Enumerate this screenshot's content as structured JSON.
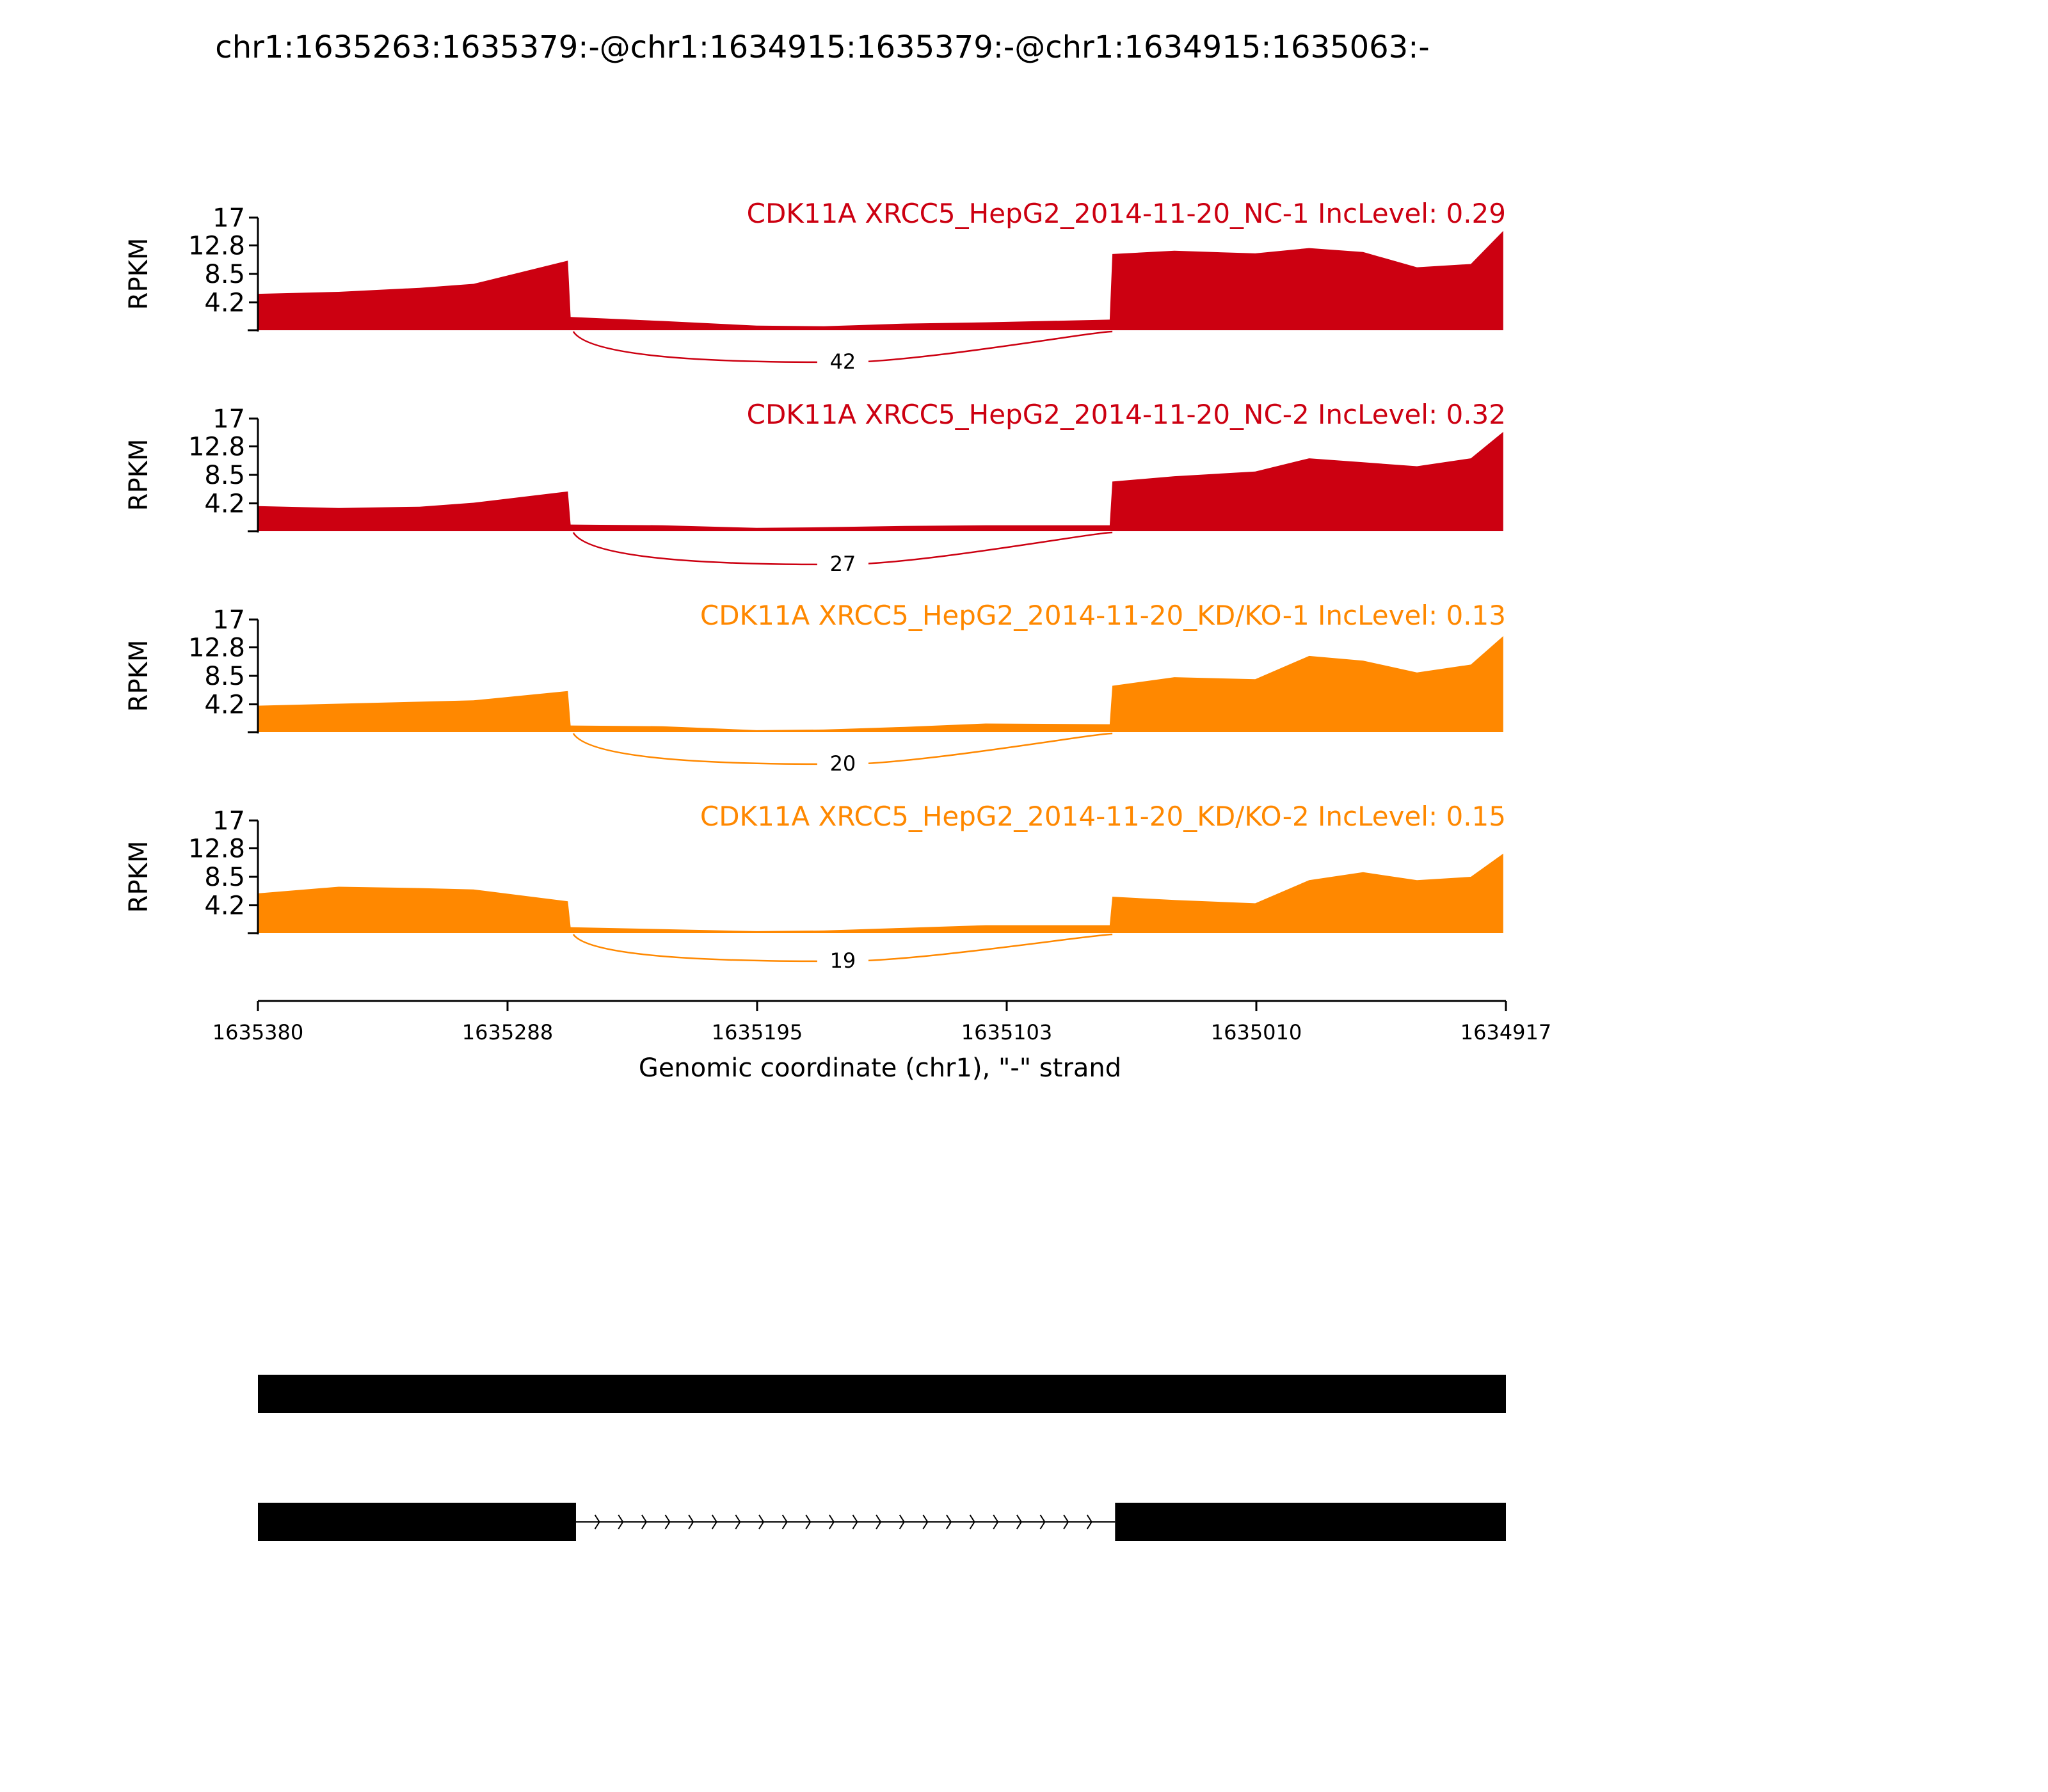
{
  "figure": {
    "title": "chr1:1635263:1635379:-@chr1:1634915:1635379:-@chr1:1634915:1635063:-",
    "xlabel": "Genomic coordinate (chr1), \"-\" strand",
    "x_ticks": [
      "1635380",
      "1635288",
      "1635195",
      "1635103",
      "1635010",
      "1634917"
    ]
  },
  "chart_data": {
    "type": "area",
    "title": "chr1:1635263:1635379:-@chr1:1634915:1635379:-@chr1:1634915:1635063:-",
    "xlabel": "Genomic coordinate (chr1), \"-\" strand",
    "ylabel": "RPKM",
    "xlim": [
      1635380,
      1634917
    ],
    "x_reversed": true,
    "ylim": [
      0,
      17
    ],
    "y_ticks": [
      "17",
      "12.8",
      "8.5",
      "4.2"
    ],
    "x": [
      1635380,
      1635350,
      1635320,
      1635300,
      1635265,
      1635264,
      1635230,
      1635195,
      1635170,
      1635140,
      1635110,
      1635064,
      1635063,
      1635040,
      1635010,
      1634990,
      1634970,
      1634950,
      1634930,
      1634918
    ],
    "series": [
      {
        "name": "CDK11A XRCC5_HepG2_2014-11-20_NC-1 IncLevel: 0.29",
        "color": "#cc0011",
        "junction_count": "42",
        "values": [
          5.5,
          5.8,
          6.4,
          7.0,
          10.5,
          2.0,
          1.4,
          0.7,
          0.6,
          1.0,
          1.2,
          1.6,
          11.5,
          12.0,
          11.6,
          12.4,
          11.8,
          9.5,
          10.0,
          15.0
        ]
      },
      {
        "name": "CDK11A XRCC5_HepG2_2014-11-20_NC-2 IncLevel: 0.32",
        "color": "#cc0011",
        "junction_count": "27",
        "values": [
          3.8,
          3.5,
          3.7,
          4.3,
          6.0,
          1.0,
          0.9,
          0.5,
          0.6,
          0.8,
          0.9,
          0.9,
          7.5,
          8.3,
          9.0,
          11.0,
          10.4,
          9.8,
          11.0,
          15.0
        ]
      },
      {
        "name": "CDK11A XRCC5_HepG2_2014-11-20_KD/KO-1 IncLevel: 0.13",
        "color": "#ff8800",
        "junction_count": "20",
        "values": [
          4.0,
          4.3,
          4.6,
          4.8,
          6.2,
          1.0,
          0.9,
          0.3,
          0.4,
          0.8,
          1.3,
          1.2,
          7.0,
          8.3,
          8.0,
          11.5,
          10.8,
          9.0,
          10.2,
          14.5
        ]
      },
      {
        "name": "CDK11A XRCC5_HepG2_2014-11-20_KD/KO-2 IncLevel: 0.15",
        "color": "#ff8800",
        "junction_count": "19",
        "values": [
          6.0,
          7.0,
          6.8,
          6.6,
          4.8,
          0.9,
          0.6,
          0.3,
          0.4,
          0.8,
          1.2,
          1.2,
          5.5,
          5.0,
          4.5,
          8.0,
          9.2,
          8.0,
          8.5,
          12.0
        ]
      }
    ],
    "isoforms": [
      {
        "exons": [
          [
            1635380,
            1634917
          ]
        ]
      },
      {
        "exons": [
          [
            1635380,
            1635262
          ],
          [
            1635062,
            1634917
          ]
        ],
        "intron_arrows": true
      }
    ]
  }
}
